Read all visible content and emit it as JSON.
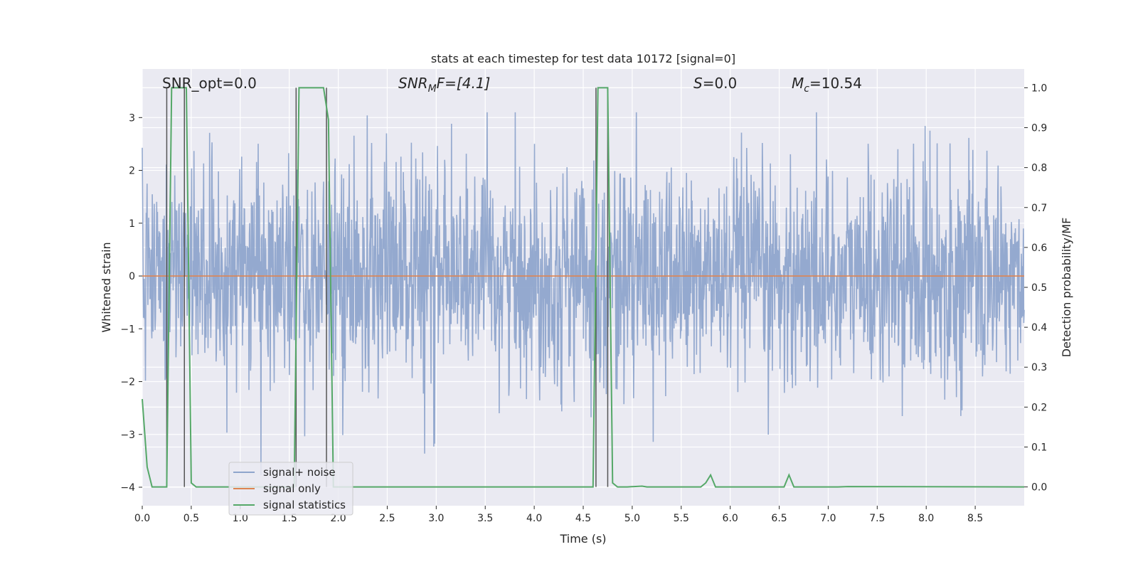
{
  "chart_data": {
    "type": "line",
    "title": "stats at each timestep for test data 10172 [signal=0]",
    "xlabel": "Time (s)",
    "ylabel": "Whitened strain",
    "y2label": "Detection probability/MF",
    "xlim": [
      0.0,
      9.0
    ],
    "ylim": [
      -4.35,
      3.92
    ],
    "y2lim": [
      -0.047,
      1.047
    ],
    "xticks": [
      "0.0",
      "0.5",
      "1.0",
      "1.5",
      "2.0",
      "2.5",
      "3.0",
      "3.5",
      "4.0",
      "4.5",
      "5.0",
      "5.5",
      "6.0",
      "6.5",
      "7.0",
      "7.5",
      "8.0",
      "8.5"
    ],
    "yticks": [
      "3",
      "2",
      "1",
      "0",
      "−1",
      "−2",
      "−3",
      "−4"
    ],
    "y2ticks": [
      "1.0",
      "0.9",
      "0.8",
      "0.7",
      "0.6",
      "0.5",
      "0.4",
      "0.3",
      "0.2",
      "0.1",
      "0.0"
    ],
    "grid": true,
    "legend_position": "lower-left",
    "colors": {
      "background": "#eaeaf2",
      "grid": "#ffffff",
      "noise": "#8fa5cc",
      "signal_only": "#dd8452",
      "stats": "#55a868",
      "vlines": "#555555"
    },
    "annotations": {
      "snr_opt": "SNR_opt=0.0",
      "snr_mf_prefix": "SNR",
      "snr_mf_sub": "M",
      "snr_mf_suffix": "F=[4.1]",
      "s_stat_prefix": "S",
      "s_stat_suffix": "=0.0",
      "mc_prefix": "M",
      "mc_sub": "c",
      "mc_suffix": "=10.54"
    },
    "series": [
      {
        "name": "signal+ noise",
        "description_range": "dense noise approximately between -2.3 and 2.3 with spikes to about -4 and 3.1",
        "amplitude_sigma": 1.0,
        "samples": 2200
      },
      {
        "name": "signal only",
        "x": [
          0.0,
          9.0
        ],
        "y": [
          0.0,
          0.0
        ]
      },
      {
        "name": "signal statistics",
        "axis": "right",
        "x": [
          0.0,
          0.05,
          0.1,
          0.2,
          0.25,
          0.3,
          0.35,
          0.4,
          0.45,
          0.5,
          0.55,
          1.4,
          1.55,
          1.6,
          1.65,
          1.85,
          1.9,
          1.95,
          2.0,
          4.55,
          4.6,
          4.65,
          4.7,
          4.75,
          4.8,
          4.85,
          4.95,
          5.1,
          5.15,
          5.2,
          5.7,
          5.75,
          5.8,
          5.85,
          5.9,
          6.5,
          6.55,
          6.6,
          6.65,
          6.7,
          7.1,
          7.2,
          9.0
        ],
        "y": [
          0.22,
          0.05,
          0.0,
          0.0,
          0.0,
          1.0,
          1.0,
          1.0,
          1.0,
          0.01,
          0.0,
          0.0,
          0.0,
          1.0,
          1.0,
          1.0,
          0.92,
          0.0,
          0.0,
          0.0,
          0.0,
          1.0,
          1.0,
          1.0,
          0.01,
          0.0,
          0.0,
          0.002,
          0.0,
          0.0,
          0.0,
          0.01,
          0.03,
          0.0,
          0.0,
          0.0,
          0.0,
          0.03,
          0.0,
          0.0,
          0.0,
          0.001,
          0.0
        ]
      }
    ],
    "vertical_lines_x": [
      0.25,
      0.43,
      1.57,
      1.88,
      4.63,
      4.75
    ]
  },
  "legend": {
    "noise": "signal+ noise",
    "signal_only": "signal only",
    "stats": "signal statistics"
  }
}
